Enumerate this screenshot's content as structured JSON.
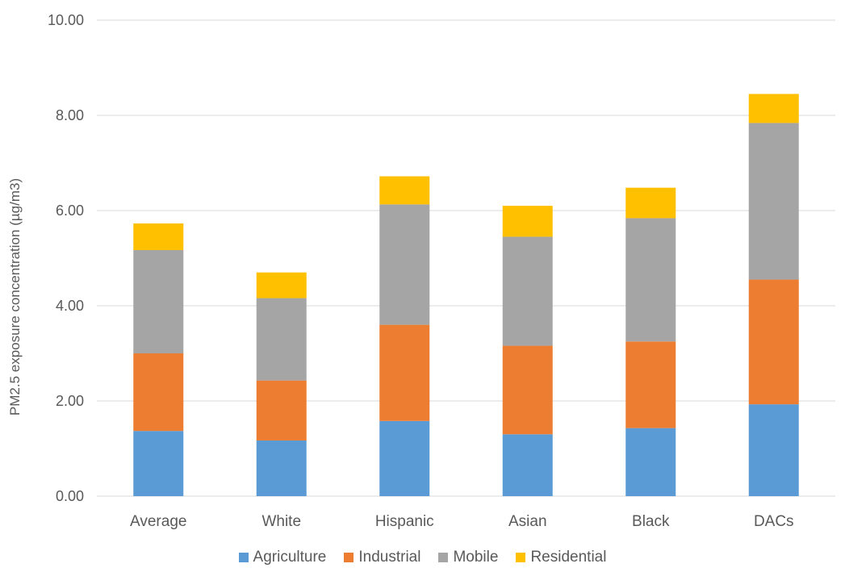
{
  "chart_data": {
    "type": "bar",
    "stacked": true,
    "title": "",
    "xlabel": "",
    "ylabel": "PM2.5 exposure concentration  (µg/m3)",
    "ylim": [
      0,
      10
    ],
    "yticks": [
      "0.00",
      "2.00",
      "4.00",
      "6.00",
      "8.00",
      "10.00"
    ],
    "grid": true,
    "legend_position": "bottom",
    "categories": [
      "Average",
      "White",
      "Hispanic",
      "Asian",
      "Black",
      "DACs"
    ],
    "series": [
      {
        "name": "Agriculture",
        "color": "#5b9bd5",
        "values": [
          1.37,
          1.17,
          1.58,
          1.3,
          1.43,
          1.93
        ]
      },
      {
        "name": "Industrial",
        "color": "#ed7d31",
        "values": [
          1.63,
          1.26,
          2.02,
          1.86,
          1.82,
          2.62
        ]
      },
      {
        "name": "Mobile",
        "color": "#a5a5a5",
        "values": [
          2.17,
          1.73,
          2.53,
          2.29,
          2.59,
          3.29
        ]
      },
      {
        "name": "Residential",
        "color": "#ffc000",
        "values": [
          0.56,
          0.54,
          0.59,
          0.65,
          0.64,
          0.61
        ]
      }
    ]
  }
}
